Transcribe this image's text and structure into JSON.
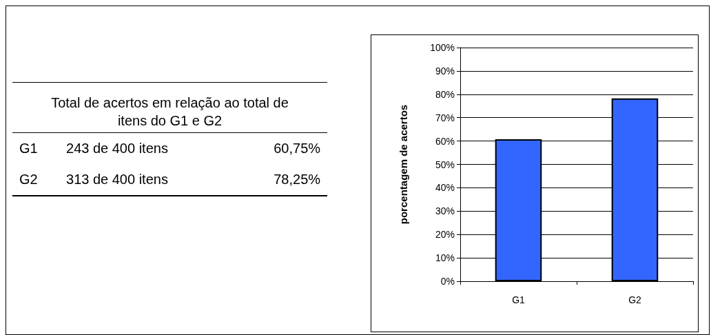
{
  "chart_data": [
    {
      "type": "other",
      "title": "Total de acertos em relação ao total de itens do G1 e G2",
      "annotations": [
        "G1",
        "243 de 400 itens",
        "60,75%",
        "G2",
        "313 de 400 itens",
        "78,25%"
      ]
    },
    {
      "type": "bar",
      "ylabel": "porcentagem de acertos",
      "categories": [
        "G1",
        "G2"
      ],
      "values": [
        60.75,
        78.25
      ],
      "color": "#3366ff",
      "ylim": [
        0,
        100
      ],
      "yticks": [
        {
          "value": 0,
          "label": "0%"
        },
        {
          "value": 10,
          "label": "10%"
        },
        {
          "value": 20,
          "label": "20%"
        },
        {
          "value": 30,
          "label": "30%"
        },
        {
          "value": 40,
          "label": "40%"
        },
        {
          "value": 50,
          "label": "50%"
        },
        {
          "value": 60,
          "label": "60%"
        },
        {
          "value": 70,
          "label": "70%"
        },
        {
          "value": 80,
          "label": "80%"
        },
        {
          "value": 90,
          "label": "90%"
        },
        {
          "value": 100,
          "label": "100%"
        }
      ],
      "grid": "y"
    }
  ]
}
